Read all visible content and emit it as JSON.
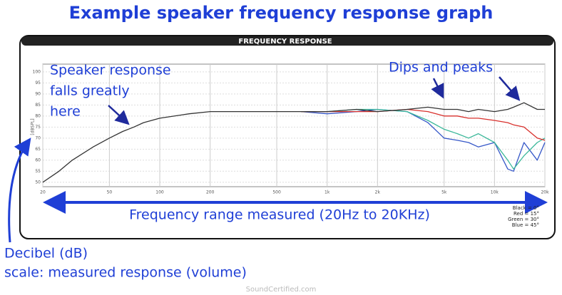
{
  "title": "Example speaker frequency response graph",
  "annotations": {
    "response_note": [
      "Speaker response",
      "falls greatly",
      "here"
    ],
    "dips_note": "Dips and peaks",
    "range_note": "Frequency range measured (20Hz to 20KHz)",
    "decibel_note": [
      "Decibel (dB)",
      "scale: measured response (volume)"
    ]
  },
  "watermark": "SoundCertified.com",
  "chart_data": {
    "type": "line",
    "title": "FREQUENCY RESPONSE",
    "ylabel": "[dBSPL]",
    "xscale": "log",
    "grid": true,
    "legend_position": "bottom-right",
    "x": [
      20,
      25,
      30,
      40,
      50,
      60,
      70,
      80,
      100,
      150,
      200,
      300,
      500,
      700,
      1000,
      1500,
      2000,
      3000,
      4000,
      5000,
      6000,
      7000,
      8000,
      10000,
      12000,
      13000,
      15000,
      18000,
      20000
    ],
    "series": [
      {
        "name": "Black = 0°",
        "color": "#333333",
        "values": [
          50,
          55,
          60,
          66,
          70,
          73,
          75,
          77,
          79,
          81,
          82,
          82,
          82,
          82,
          82,
          83,
          82,
          83,
          84,
          83,
          83,
          82,
          83,
          82,
          83,
          84,
          86,
          83,
          83
        ]
      },
      {
        "name": "Red = 15°",
        "color": "#d8302c",
        "values": [
          null,
          null,
          null,
          null,
          null,
          null,
          null,
          null,
          null,
          null,
          null,
          null,
          null,
          82,
          82,
          82,
          82,
          83,
          82,
          80,
          80,
          79,
          79,
          78,
          77,
          76,
          75,
          70,
          69
        ]
      },
      {
        "name": "Green = 30°",
        "color": "#3cb89a",
        "values": [
          null,
          null,
          null,
          null,
          null,
          null,
          null,
          null,
          null,
          null,
          null,
          null,
          null,
          82,
          82,
          83,
          83,
          82,
          78,
          74,
          72,
          70,
          72,
          68,
          60,
          56,
          62,
          68,
          70
        ]
      },
      {
        "name": "Blue = 45°",
        "color": "#3557c8",
        "values": [
          null,
          null,
          null,
          null,
          null,
          null,
          null,
          null,
          null,
          null,
          null,
          null,
          null,
          82,
          81,
          82,
          83,
          82,
          77,
          70,
          69,
          68,
          66,
          68,
          56,
          55,
          68,
          60,
          68
        ]
      }
    ],
    "xlim": [
      20,
      20000
    ],
    "xticks": [
      20,
      50,
      100,
      200,
      500,
      {
        "value": 1000,
        "label": "1k"
      },
      {
        "value": 2000,
        "label": "2k"
      },
      {
        "value": 5000,
        "label": "5k"
      },
      {
        "value": 10000,
        "label": "10k"
      },
      {
        "value": 20000,
        "label": "20k"
      }
    ],
    "ylim": [
      48,
      103.5
    ],
    "yticks": [
      50,
      55,
      60,
      65,
      70,
      75,
      80,
      85,
      90,
      95,
      100
    ]
  }
}
